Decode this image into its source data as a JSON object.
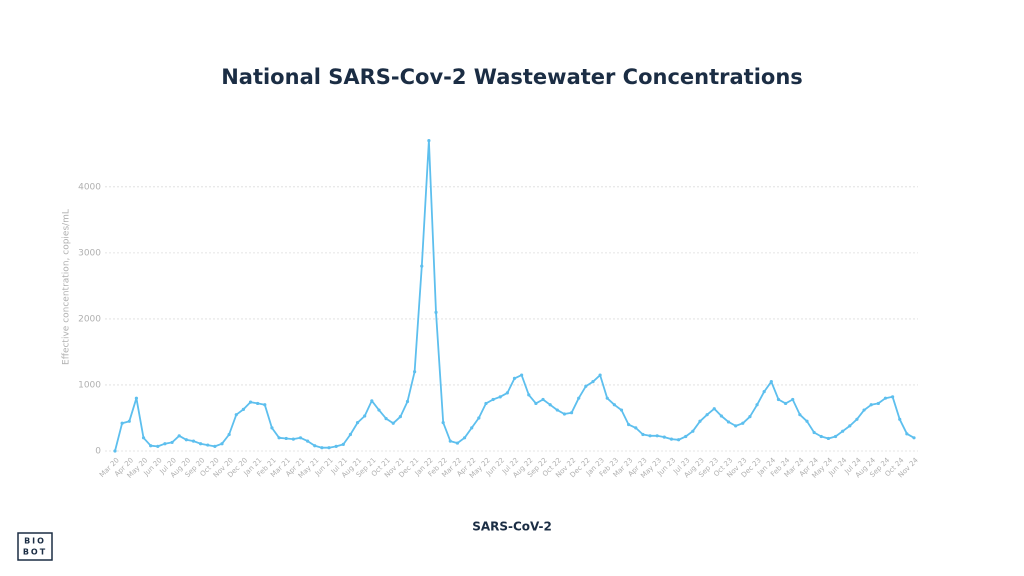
{
  "chart_data": {
    "type": "line",
    "title": "National SARS-Cov-2 Wastewater Concentrations",
    "y_label": "Effective concentration, copies/mL",
    "logo": [
      "BIO",
      "BOT"
    ],
    "categories": [
      "Mar 20",
      null,
      "Apr 20",
      null,
      "May 20",
      null,
      "Jun 20",
      null,
      "Jul 20",
      null,
      "Aug 20",
      null,
      "Sep 20",
      null,
      "Oct 20",
      null,
      "Nov 20",
      null,
      "Dec 20",
      null,
      "Jan 21",
      null,
      "Feb 21",
      null,
      "Mar 21",
      null,
      "Apr 21",
      null,
      "May 21",
      null,
      "Jun 21",
      null,
      "Jul 21",
      null,
      "Aug 21",
      null,
      "Sep 21",
      null,
      "Oct 21",
      null,
      "Nov 21",
      null,
      "Dec 21",
      null,
      "Jan 22",
      null,
      "Feb 22",
      null,
      "Mar 22",
      null,
      "Apr 22",
      null,
      "May 22",
      null,
      "Jun 22",
      null,
      "Jul 22",
      null,
      "Aug 22",
      null,
      "Sep 22",
      null,
      "Oct 22",
      null,
      "Nov 22",
      null,
      "Dec 22",
      null,
      "Jan 23",
      null,
      "Feb 23",
      null,
      "Mar 23",
      null,
      "Apr 23",
      null,
      "May 23",
      null,
      "Jun 23",
      null,
      "Jul 23",
      null,
      "Aug 23",
      null,
      "Sep 23",
      null,
      "Oct 23",
      null,
      "Nov 23",
      null,
      "Dec 23",
      null,
      "Jan 24",
      null,
      "Feb 24",
      null,
      "Mar 24",
      null,
      "Apr 24",
      null,
      "May 24",
      null,
      "Jun 24",
      null,
      "Jul 24",
      null,
      "Aug 24",
      null,
      "Sep 24",
      null,
      "Oct 24",
      null,
      "Nov 24"
    ],
    "series": [
      {
        "name": "SARS-CoV-2",
        "color": "#5dbfee",
        "values": [
          0,
          420,
          450,
          800,
          200,
          80,
          70,
          110,
          130,
          230,
          170,
          150,
          110,
          90,
          70,
          110,
          250,
          550,
          630,
          740,
          720,
          700,
          350,
          200,
          190,
          180,
          200,
          150,
          80,
          50,
          50,
          70,
          100,
          250,
          430,
          530,
          760,
          620,
          490,
          420,
          520,
          750,
          1200,
          2800,
          4700,
          2100,
          430,
          150,
          120,
          200,
          350,
          500,
          720,
          780,
          820,
          880,
          1100,
          1150,
          850,
          720,
          780,
          700,
          620,
          560,
          580,
          800,
          980,
          1050,
          1150,
          800,
          700,
          620,
          400,
          350,
          250,
          230,
          230,
          210,
          180,
          170,
          220,
          300,
          450,
          550,
          640,
          530,
          440,
          380,
          420,
          520,
          700,
          900,
          1050,
          780,
          720,
          780,
          550,
          450,
          280,
          220,
          190,
          220,
          300,
          380,
          480,
          620,
          700,
          720,
          800,
          820,
          480,
          260,
          200
        ]
      }
    ],
    "ylim": [
      0,
      4800
    ],
    "yticks": [
      0,
      1000,
      2000,
      3000,
      4000
    ],
    "grid": true
  }
}
